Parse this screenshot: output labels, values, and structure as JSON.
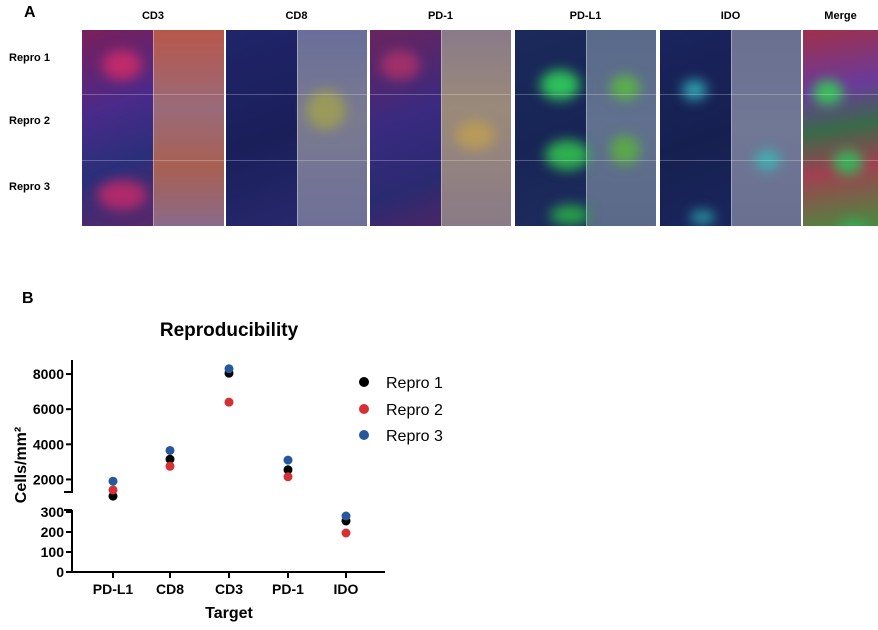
{
  "panel_a": {
    "letter": "A",
    "columns": [
      "CD3",
      "CD8",
      "PD-1",
      "PD-L1",
      "IDO",
      "Merge"
    ],
    "rows": [
      "Repro 1",
      "Repro 2",
      "Repro 3"
    ]
  },
  "panel_b": {
    "letter": "B"
  },
  "colors": {
    "repro1": "#000000",
    "repro2": "#d62f34",
    "repro3": "#27589c"
  },
  "chart_data": {
    "type": "scatter",
    "title": "Reproducibility",
    "xlabel": "Target",
    "ylabel": "Cells/mm²",
    "categories": [
      "PD-L1",
      "CD8",
      "CD3",
      "PD-1",
      "IDO"
    ],
    "y_axis_break": true,
    "lower_ylim": [
      0,
      300
    ],
    "lower_yticks": [
      0,
      100,
      200,
      300
    ],
    "upper_ylim": [
      1000,
      8800
    ],
    "upper_yticks": [
      2000,
      4000,
      6000,
      8000
    ],
    "legend_position": "top-right",
    "series": [
      {
        "name": "Repro 1",
        "values": [
          1050,
          3150,
          8050,
          2550,
          255
        ]
      },
      {
        "name": "Repro 2",
        "values": [
          1400,
          2750,
          6400,
          2150,
          195
        ]
      },
      {
        "name": "Repro 3",
        "values": [
          1900,
          3650,
          8300,
          3100,
          280
        ]
      }
    ]
  }
}
